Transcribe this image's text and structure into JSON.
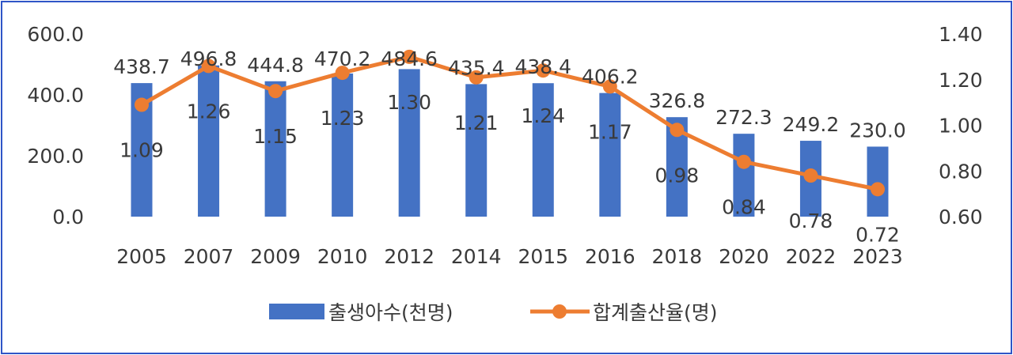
{
  "chart_data": {
    "type": "bar",
    "categories": [
      "2005",
      "2007",
      "2009",
      "2010",
      "2012",
      "2014",
      "2015",
      "2016",
      "2018",
      "2020",
      "2022",
      "2023"
    ],
    "series": [
      {
        "name": "출생아수(천명)",
        "type": "bar",
        "axis": "left",
        "color": "#4472c4",
        "values": [
          438.7,
          496.8,
          444.8,
          470.2,
          484.6,
          435.4,
          438.4,
          406.2,
          326.8,
          272.3,
          249.2,
          230.0
        ],
        "labels": [
          "438.7",
          "496.8",
          "444.8",
          "470.2",
          "484.6",
          "435.4",
          "438.4",
          "406.2",
          "326.8",
          "272.3",
          "249.2",
          "230.0"
        ]
      },
      {
        "name": "합계출산율(명)",
        "type": "line",
        "axis": "right",
        "color": "#ed7d31",
        "values": [
          1.09,
          1.26,
          1.15,
          1.23,
          1.3,
          1.21,
          1.24,
          1.17,
          0.98,
          0.84,
          0.78,
          0.72
        ],
        "labels": [
          "1.09",
          "1.26",
          "1.15",
          "1.23",
          "1.30",
          "1.21",
          "1.24",
          "1.17",
          "0.98",
          "0.84",
          "0.78",
          "0.72"
        ]
      }
    ],
    "y_left": {
      "min": 0,
      "max": 600,
      "ticks": [
        "0.0",
        "200.0",
        "400.0",
        "600.0"
      ],
      "tick_values": [
        0,
        200,
        400,
        600
      ]
    },
    "y_right": {
      "min": 0.6,
      "max": 1.4,
      "ticks": [
        "0.60",
        "0.80",
        "1.00",
        "1.20",
        "1.40"
      ],
      "tick_values": [
        0.6,
        0.8,
        1.0,
        1.2,
        1.4
      ]
    },
    "title": "",
    "xlabel": "",
    "ylabel": "",
    "grid": false,
    "legend_position": "bottom"
  }
}
